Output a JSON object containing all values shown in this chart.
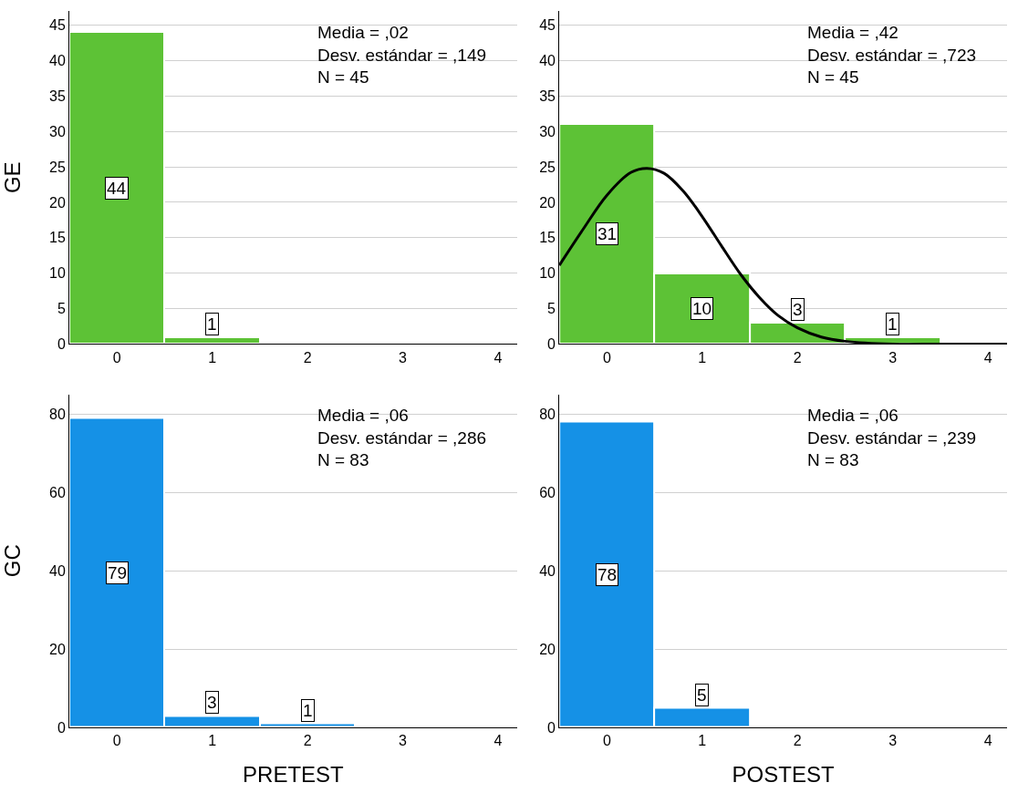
{
  "chart_data": [
    {
      "type": "histogram",
      "ylabel": "GE",
      "bins": [
        -0.5,
        0.5,
        1.5,
        2.5,
        3.5
      ],
      "values": [
        44,
        1,
        0,
        0
      ],
      "value_labels": [
        "44",
        "1",
        null,
        null
      ],
      "color": "#5dc236",
      "xlim": [
        -0.5,
        4.2
      ],
      "xticks": [
        0,
        1,
        2,
        3,
        4
      ],
      "ylim": [
        0,
        47
      ],
      "yticks": [
        0,
        5,
        10,
        15,
        20,
        25,
        30,
        35,
        40,
        45
      ],
      "grid": "y",
      "annotations": [
        "Media = ,02\nDesv. estándar = ,149\nN = 45"
      ]
    },
    {
      "type": "histogram",
      "bins": [
        -0.5,
        0.5,
        1.5,
        2.5,
        3.5
      ],
      "values": [
        31,
        10,
        3,
        1
      ],
      "value_labels": [
        "31",
        "10",
        "3",
        "1"
      ],
      "color": "#5dc236",
      "xlim": [
        -0.5,
        4.2
      ],
      "xticks": [
        0,
        1,
        2,
        3,
        4
      ],
      "ylim": [
        0,
        47
      ],
      "yticks": [
        0,
        5,
        10,
        15,
        20,
        25,
        30,
        35,
        40,
        45
      ],
      "grid": "y",
      "series": [
        {
          "type": "line",
          "color": "#000000",
          "x": [
            -0.5,
            -0.25,
            0,
            0.25,
            0.42,
            0.6,
            0.8,
            1.0,
            1.2,
            1.4,
            1.6,
            1.8,
            2.0,
            2.25,
            2.5,
            3.0,
            3.5,
            4.2
          ],
          "values": [
            11.1,
            16.2,
            21.0,
            24.2,
            24.8,
            24.1,
            21.6,
            18.0,
            13.9,
            9.9,
            6.6,
            4.0,
            2.3,
            1.0,
            0.4,
            0.0,
            0.0,
            0.0
          ]
        }
      ],
      "annotations": [
        "Media = ,42\nDesv. estándar = ,723\nN = 45"
      ]
    },
    {
      "type": "histogram",
      "ylabel": "GC",
      "xlabel": "PRETEST",
      "bins": [
        -0.5,
        0.5,
        1.5,
        2.5,
        3.5
      ],
      "values": [
        79,
        3,
        1,
        0
      ],
      "value_labels": [
        "79",
        "3",
        "1",
        null
      ],
      "color": "#1591e6",
      "xlim": [
        -0.5,
        4.2
      ],
      "xticks": [
        0,
        1,
        2,
        3,
        4
      ],
      "ylim": [
        0,
        85
      ],
      "yticks": [
        0,
        20,
        40,
        60,
        80
      ],
      "grid": "y",
      "annotations": [
        "Media = ,06\nDesv. estándar = ,286\nN = 83"
      ]
    },
    {
      "type": "histogram",
      "xlabel": "POSTEST",
      "bins": [
        -0.5,
        0.5,
        1.5,
        2.5,
        3.5
      ],
      "values": [
        78,
        5,
        0,
        0
      ],
      "value_labels": [
        "78",
        "5",
        null,
        null
      ],
      "color": "#1591e6",
      "xlim": [
        -0.5,
        4.2
      ],
      "xticks": [
        0,
        1,
        2,
        3,
        4
      ],
      "ylim": [
        0,
        85
      ],
      "yticks": [
        0,
        20,
        40,
        60,
        80
      ],
      "grid": "y",
      "annotations": [
        "Media = ,06\nDesv. estándar = ,239\nN = 83"
      ]
    }
  ]
}
